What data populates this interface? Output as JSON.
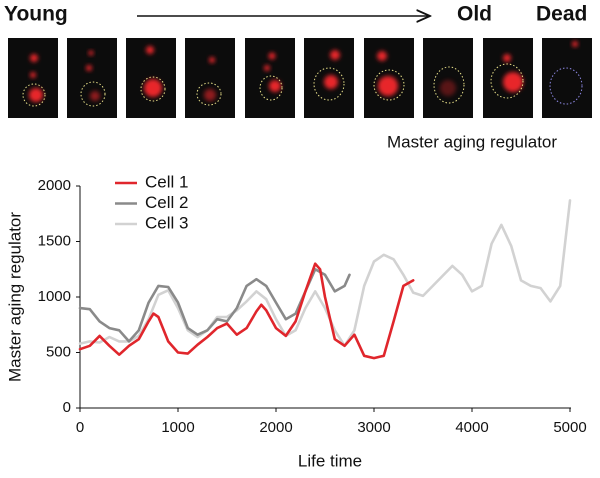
{
  "figure": {
    "young": "Young",
    "old": "Old",
    "dead": "Dead",
    "image_label": "Master aging regulator"
  },
  "chart_data": {
    "type": "line",
    "x_label": "Life time",
    "y_label": "Master aging regulator",
    "xlim": [
      0,
      5000
    ],
    "xticks": [
      0,
      1000,
      2000,
      3000,
      4000,
      5000
    ],
    "ylim": [
      0,
      2000
    ],
    "yticks": [
      0,
      500,
      1000,
      1500,
      2000
    ],
    "legend": "upper left",
    "series": [
      {
        "name": "Cell 1",
        "color": "#e0262c",
        "x": [
          0,
          100,
          200,
          300,
          400,
          500,
          600,
          700,
          750,
          800,
          900,
          1000,
          1100,
          1200,
          1300,
          1400,
          1500,
          1600,
          1700,
          1800,
          1850,
          1900,
          2000,
          2100,
          2200,
          2300,
          2400,
          2450,
          2500,
          2600,
          2700,
          2800,
          2900,
          3000,
          3100,
          3200,
          3300,
          3400
        ],
        "values": [
          530,
          560,
          650,
          560,
          480,
          560,
          620,
          780,
          850,
          820,
          600,
          500,
          490,
          570,
          640,
          720,
          760,
          660,
          720,
          870,
          930,
          880,
          720,
          650,
          780,
          1050,
          1300,
          1250,
          1000,
          620,
          560,
          660,
          470,
          450,
          470,
          780,
          1100,
          1150
        ]
      },
      {
        "name": "Cell 2",
        "color": "#8a8a8a",
        "x": [
          0,
          100,
          200,
          300,
          400,
          500,
          600,
          700,
          800,
          900,
          1000,
          1100,
          1200,
          1300,
          1400,
          1500,
          1600,
          1700,
          1800,
          1900,
          2000,
          2100,
          2200,
          2300,
          2400,
          2500,
          2600,
          2700,
          2750
        ],
        "values": [
          900,
          890,
          780,
          720,
          700,
          600,
          700,
          950,
          1100,
          1090,
          950,
          720,
          660,
          700,
          800,
          780,
          900,
          1100,
          1160,
          1100,
          950,
          800,
          850,
          1050,
          1250,
          1200,
          1050,
          1100,
          1200
        ]
      },
      {
        "name": "Cell 3",
        "color": "#d2d2d2",
        "x": [
          0,
          100,
          200,
          300,
          400,
          500,
          600,
          700,
          800,
          900,
          1000,
          1100,
          1200,
          1300,
          1400,
          1500,
          1600,
          1700,
          1800,
          1900,
          2000,
          2100,
          2200,
          2300,
          2400,
          2500,
          2600,
          2700,
          2800,
          2900,
          3000,
          3100,
          3200,
          3300,
          3400,
          3500,
          3600,
          3800,
          3900,
          4000,
          4100,
          4200,
          4300,
          4400,
          4500,
          4600,
          4700,
          4800,
          4900,
          5000
        ],
        "values": [
          580,
          600,
          590,
          640,
          600,
          600,
          650,
          800,
          1020,
          1060,
          900,
          700,
          640,
          700,
          820,
          820,
          880,
          960,
          1050,
          980,
          800,
          650,
          700,
          900,
          1050,
          900,
          700,
          560,
          700,
          1100,
          1320,
          1380,
          1340,
          1200,
          1040,
          1010,
          1100,
          1280,
          1200,
          1050,
          1100,
          1480,
          1650,
          1460,
          1150,
          1100,
          1080,
          960,
          1100,
          1870
        ]
      }
    ]
  }
}
